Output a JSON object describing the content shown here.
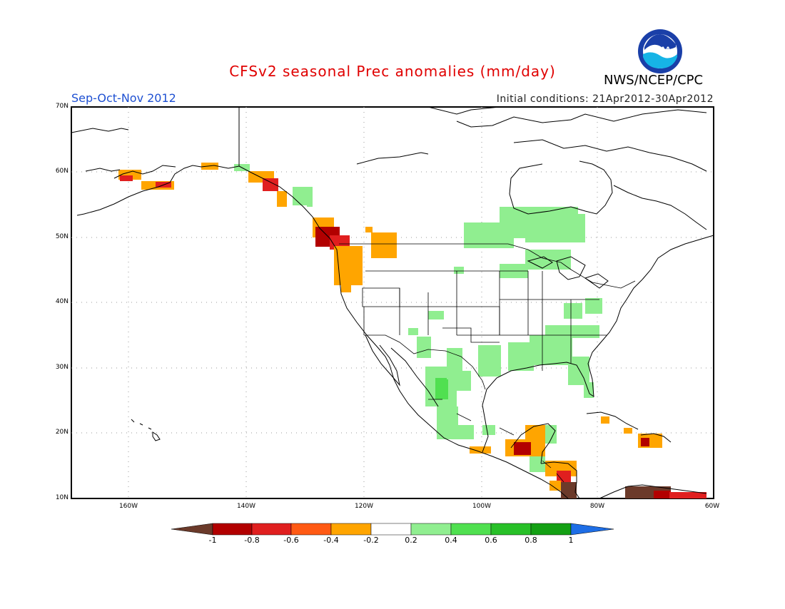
{
  "header": {
    "title": "CFSv2 seasonal Prec anomalies (mm/day)",
    "organization": "NWS/NCEP/CPC",
    "logo_text": "NOAA",
    "season": "Sep-Oct-Nov 2012",
    "initial_conditions": "Initial conditions: 21Apr2012-30Apr2012"
  },
  "map": {
    "lat_labels": [
      "70N",
      "60N",
      "50N",
      "40N",
      "30N",
      "20N",
      "10N"
    ],
    "lon_labels": [
      "160W",
      "140W",
      "120W",
      "100W",
      "80W",
      "60W"
    ],
    "extent": {
      "lon_min": -172,
      "lon_max": -60,
      "lat_min": 10,
      "lat_max": 70
    }
  },
  "colorbar": {
    "labels": [
      "-1",
      "-0.8",
      "-0.6",
      "-0.4",
      "-0.2",
      "0.2",
      "0.4",
      "0.6",
      "0.8",
      "1"
    ],
    "colors": [
      "#6b3a2a",
      "#b20000",
      "#e01f1f",
      "#ff5a14",
      "#ffa500",
      "#ffffff",
      "#90ee90",
      "#50e050",
      "#28c028",
      "#14a014",
      "#1e6ee6"
    ]
  }
}
